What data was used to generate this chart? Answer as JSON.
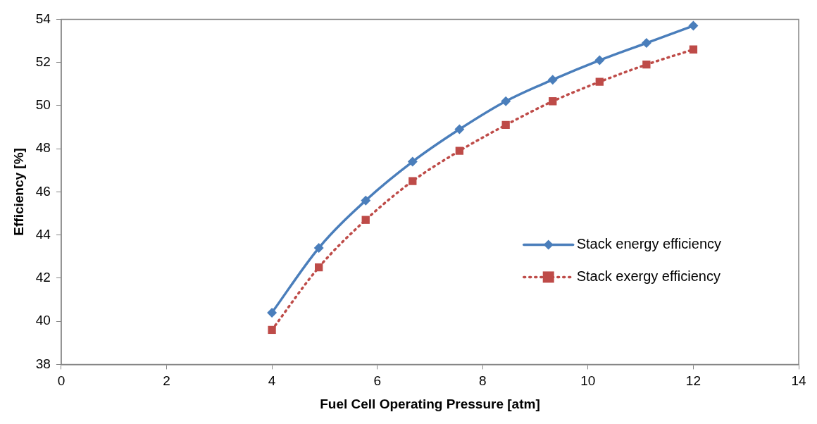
{
  "chart_data": {
    "type": "line",
    "xlabel": "Fuel Cell Operating Pressure [atm]",
    "ylabel": "Efficiency [%]",
    "x": [
      4,
      4.89,
      5.78,
      6.67,
      7.56,
      8.44,
      9.33,
      10.22,
      11.11,
      12
    ],
    "series": [
      {
        "name": "Stack energy efficiency",
        "color": "#4a7ebb",
        "marker": "diamond",
        "line_style": "solid",
        "values": [
          40.4,
          43.4,
          45.6,
          47.4,
          48.9,
          50.2,
          51.2,
          52.1,
          52.9,
          53.7
        ]
      },
      {
        "name": "Stack exergy efficiency",
        "color": "#be4b48",
        "marker": "square",
        "line_style": "dotted",
        "values": [
          39.6,
          42.5,
          44.7,
          46.5,
          47.9,
          49.1,
          50.2,
          51.1,
          51.9,
          52.6
        ]
      }
    ],
    "xlim": [
      0,
      14
    ],
    "xticks": [
      0,
      2,
      4,
      6,
      8,
      10,
      12,
      14
    ],
    "ylim": [
      38,
      54
    ],
    "yticks": [
      38,
      40,
      42,
      44,
      46,
      48,
      50,
      52,
      54
    ],
    "grid": false,
    "legend": "right"
  }
}
